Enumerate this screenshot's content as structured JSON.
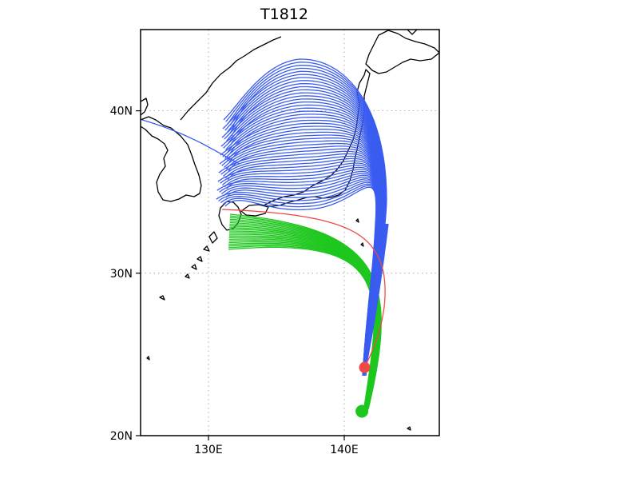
{
  "title": "T1812",
  "map": {
    "lon_range": [
      125,
      147
    ],
    "lat_range": [
      20,
      45
    ],
    "lon_ticks": [
      {
        "value": 130,
        "label": "130E"
      },
      {
        "value": 140,
        "label": "140E"
      }
    ],
    "lat_ticks": [
      {
        "value": 20,
        "label": "20N"
      },
      {
        "value": 30,
        "label": "30N"
      },
      {
        "value": 40,
        "label": "40N"
      }
    ],
    "grid": true
  },
  "colors": {
    "blue_member": "#3a5cf0",
    "green_member": "#1ec71e",
    "best_track": "#ef4a4a",
    "coast": "#000000"
  },
  "observed_start": {
    "lon": 141.5,
    "lat": 24.2
  },
  "ensemble_start": {
    "lon": 141.3,
    "lat": 21.5
  }
}
